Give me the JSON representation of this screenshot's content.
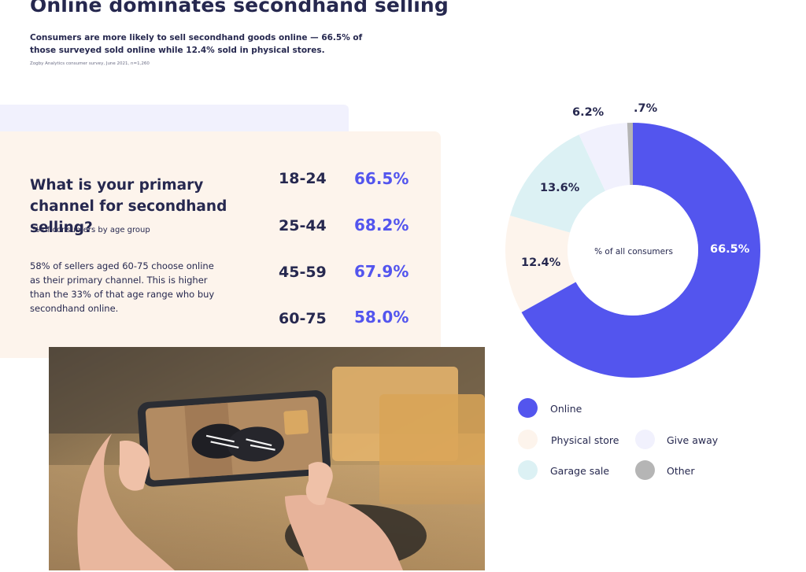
{
  "header": {
    "title": "Online dominates secondhand selling",
    "subtitle": "Consumers are more likely to sell secondhand goods online — 66.5% of those surveyed sold online while 12.4% sold in physical stores.",
    "source": "Zogby Analytics consumer survey, June 2021, n=1,260"
  },
  "card": {
    "question": "What is your primary channel for secondhand selling?",
    "question_sub": "% of consumers by age group",
    "note": "58% of sellers aged 60-75 choose online as their primary channel. This is higher than the 33% of that age range who buy secondhand online."
  },
  "photo": {
    "icon": "phone-photographing-shoes-image"
  },
  "chart_data": [
    {
      "type": "table",
      "title": "What is your primary channel for secondhand selling?",
      "subtitle": "% of consumers by age group",
      "rows": [
        {
          "age": "18-24",
          "value": "66.5%"
        },
        {
          "age": "25-44",
          "value": "68.2%"
        },
        {
          "age": "45-59",
          "value": "67.9%"
        },
        {
          "age": "60-75",
          "value": "58.0%"
        }
      ],
      "value_color": "#5355ee"
    },
    {
      "type": "pie",
      "donut": true,
      "center_label": "% of all consumers",
      "slices": [
        {
          "name": "Online",
          "value": 66.5,
          "label": "66.5%",
          "color": "#5355ee"
        },
        {
          "name": "Physical store",
          "value": 12.4,
          "label": "12.4%",
          "color": "#fdf4ec"
        },
        {
          "name": "Garage sale",
          "value": 13.6,
          "label": "13.6%",
          "color": "#dcf1f4"
        },
        {
          "name": "Give away",
          "value": 6.2,
          "label": "6.2%",
          "color": "#f1f1fd"
        },
        {
          "name": "Other",
          "value": 0.7,
          "label": ".7%",
          "color": "#b5b5b5"
        }
      ],
      "legend": {
        "placement": "bottom",
        "items": [
          {
            "label": "Online",
            "color": "#5355ee"
          },
          {
            "label": "Physical store",
            "color": "#fdf4ec"
          },
          {
            "label": "Give away",
            "color": "#f1f1fd"
          },
          {
            "label": "Garage sale",
            "color": "#dcf1f4"
          },
          {
            "label": "Other",
            "color": "#b5b5b5"
          }
        ]
      }
    }
  ]
}
